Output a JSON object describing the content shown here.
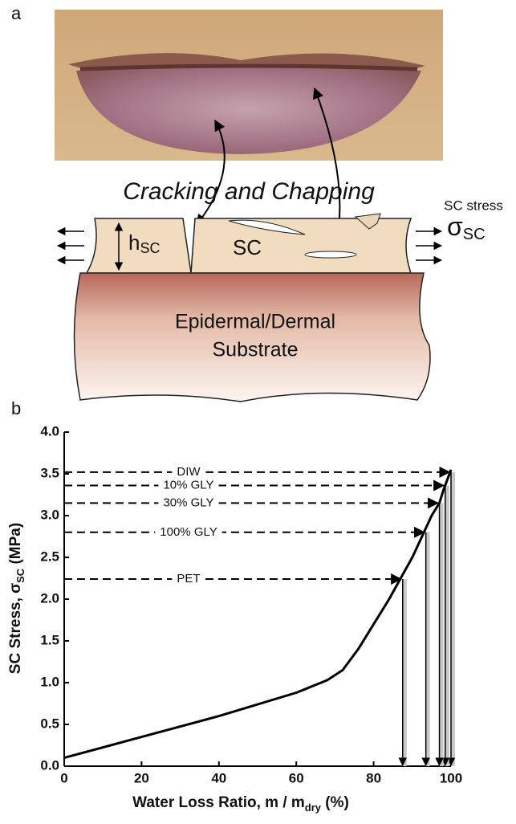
{
  "panel_a": {
    "label": "a",
    "caption": "Cracking and Chapping",
    "stress_label": "SC stress",
    "sigma": {
      "symbol": "σ",
      "sub": "SC"
    },
    "thickness": {
      "symbol": "h",
      "sub": "SC"
    },
    "layer": "SC",
    "substrate": [
      "Epidermal/Dermal",
      "Substrate"
    ]
  },
  "chart_data": {
    "type": "line",
    "panel_label": "b",
    "x_label": {
      "text": "Water Loss Ratio, m / m",
      "sub": "dry",
      "after": " (%)"
    },
    "y_label": {
      "text": "SC Stress, σ",
      "sub": "SC",
      "after": " (MPa)"
    },
    "x": [
      0,
      20,
      40,
      60,
      68,
      72,
      76,
      80,
      84,
      87,
      90,
      93,
      95,
      97,
      98,
      100
    ],
    "values": [
      0.1,
      0.35,
      0.6,
      0.88,
      1.03,
      1.15,
      1.4,
      1.7,
      2.0,
      2.25,
      2.5,
      2.8,
      3.0,
      3.15,
      3.3,
      3.55
    ],
    "color": "#000000",
    "xlim": [
      0,
      100
    ],
    "xticks": [
      0,
      20,
      40,
      60,
      80,
      100
    ],
    "ylim": [
      0,
      4
    ],
    "yticks": [
      {
        "value": 0,
        "label": "0.0"
      },
      {
        "value": 0.5,
        "label": "0.5"
      },
      {
        "value": 1,
        "label": "1.0"
      },
      {
        "value": 1.5,
        "label": "1.5"
      },
      {
        "value": 2,
        "label": "2.0"
      },
      {
        "value": 2.5,
        "label": "2.5"
      },
      {
        "value": 3,
        "label": "3.0"
      },
      {
        "value": 3.5,
        "label": "3.5"
      },
      {
        "value": 4,
        "label": "4.0"
      }
    ],
    "annotations": [
      {
        "label": "DIW",
        "x": 100,
        "y": 3.52
      },
      {
        "label": "10% GLY",
        "x": 98.5,
        "y": 3.36
      },
      {
        "label": "30% GLY",
        "x": 97,
        "y": 3.15
      },
      {
        "label": "100% GLY",
        "x": 93.5,
        "y": 2.8
      },
      {
        "label": "PET",
        "x": 87.5,
        "y": 2.24
      }
    ]
  }
}
